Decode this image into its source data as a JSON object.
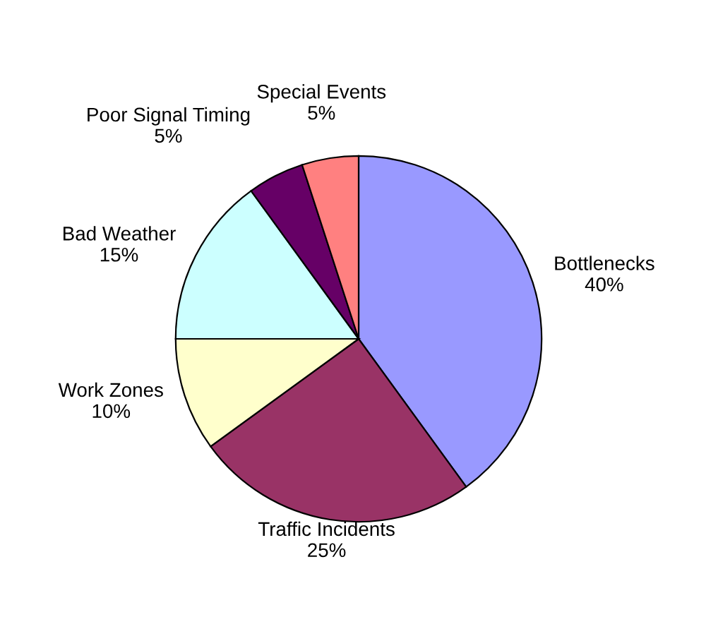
{
  "chart_data": {
    "type": "pie",
    "categories": [
      "Bottlenecks",
      "Traffic Incidents",
      "Work Zones",
      "Bad Weather",
      "Poor Signal Timing",
      "Special Events"
    ],
    "values": [
      40,
      25,
      10,
      15,
      5,
      5
    ],
    "value_labels": [
      "40%",
      "25%",
      "10%",
      "15%",
      "5%",
      "5%"
    ],
    "colors": [
      "#9999ff",
      "#993366",
      "#ffffcc",
      "#ccffff",
      "#660066",
      "#ff8080"
    ],
    "legend": false
  }
}
